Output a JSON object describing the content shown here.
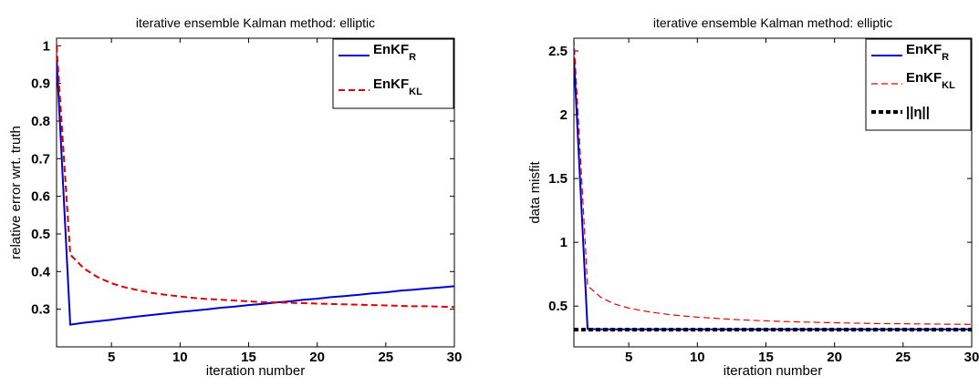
{
  "chart_data": [
    {
      "type": "line",
      "title": "iterative ensemble Kalman method: elliptic",
      "xlabel": "iteration number",
      "ylabel": "relative error wrt. truth",
      "xlim": [
        1,
        30
      ],
      "ylim": [
        0.2,
        1.02
      ],
      "xticks": [
        5,
        10,
        15,
        20,
        25,
        30
      ],
      "yticks": [
        0.3,
        0.4,
        0.5,
        0.6,
        0.7,
        0.8,
        0.9,
        1
      ],
      "legend_position": "top-right",
      "series": [
        {
          "legend_main": "EnKF",
          "legend_sub": "R",
          "color": "#0000cc",
          "dash": "solid",
          "x": [
            1,
            2,
            3,
            4,
            5,
            6,
            7,
            8,
            9,
            10,
            11,
            12,
            13,
            14,
            15,
            16,
            17,
            18,
            19,
            20,
            21,
            22,
            23,
            24,
            25,
            26,
            27,
            28,
            29,
            30
          ],
          "y": [
            0.97,
            0.259,
            0.264,
            0.268,
            0.272,
            0.277,
            0.281,
            0.285,
            0.289,
            0.293,
            0.296,
            0.3,
            0.304,
            0.307,
            0.311,
            0.314,
            0.318,
            0.321,
            0.325,
            0.328,
            0.332,
            0.335,
            0.338,
            0.342,
            0.345,
            0.349,
            0.352,
            0.355,
            0.358,
            0.361
          ]
        },
        {
          "legend_main": "EnKF",
          "legend_sub": "KL",
          "color": "#e00000",
          "dash": "dashed",
          "x": [
            1,
            2,
            3,
            4,
            5,
            6,
            7,
            8,
            9,
            10,
            11,
            12,
            13,
            14,
            15,
            16,
            17,
            18,
            19,
            20,
            21,
            22,
            23,
            24,
            25,
            26,
            27,
            28,
            29,
            30
          ],
          "y": [
            1.0,
            0.445,
            0.408,
            0.385,
            0.369,
            0.358,
            0.35,
            0.343,
            0.338,
            0.334,
            0.33,
            0.327,
            0.325,
            0.323,
            0.321,
            0.319,
            0.318,
            0.317,
            0.316,
            0.315,
            0.314,
            0.313,
            0.312,
            0.311,
            0.31,
            0.309,
            0.308,
            0.308,
            0.307,
            0.306
          ]
        }
      ]
    },
    {
      "type": "line",
      "title": "iterative ensemble Kalman method: elliptic",
      "xlabel": "iteration number",
      "ylabel": "data misfit",
      "xlim": [
        1,
        30
      ],
      "ylim": [
        0.18,
        2.6
      ],
      "xticks": [
        5,
        10,
        15,
        20,
        25,
        30
      ],
      "yticks": [
        0.5,
        1,
        1.5,
        2,
        2.5
      ],
      "legend_position": "top-right",
      "series": [
        {
          "legend_main": "EnKF",
          "legend_sub": "R",
          "color": "#0000cc",
          "dash": "solid",
          "x": [
            1,
            2,
            3,
            4,
            5,
            6,
            7,
            8,
            9,
            10,
            11,
            12,
            13,
            14,
            15,
            16,
            17,
            18,
            19,
            20,
            21,
            22,
            23,
            24,
            25,
            26,
            27,
            28,
            29,
            30
          ],
          "y": [
            2.45,
            0.32,
            0.318,
            0.318,
            0.318,
            0.318,
            0.318,
            0.318,
            0.318,
            0.318,
            0.318,
            0.318,
            0.318,
            0.318,
            0.318,
            0.318,
            0.318,
            0.318,
            0.318,
            0.318,
            0.318,
            0.318,
            0.318,
            0.318,
            0.318,
            0.318,
            0.318,
            0.318,
            0.318,
            0.318
          ]
        },
        {
          "legend_main": "EnKF",
          "legend_sub": "KL",
          "color": "#e00000",
          "dash": "thin-dashed",
          "x": [
            1,
            2,
            3,
            4,
            5,
            6,
            7,
            8,
            9,
            10,
            11,
            12,
            13,
            14,
            15,
            16,
            17,
            18,
            19,
            20,
            21,
            22,
            23,
            24,
            25,
            26,
            27,
            28,
            29,
            30
          ],
          "y": [
            2.6,
            0.66,
            0.565,
            0.515,
            0.484,
            0.463,
            0.446,
            0.433,
            0.422,
            0.413,
            0.406,
            0.399,
            0.393,
            0.388,
            0.384,
            0.38,
            0.377,
            0.374,
            0.371,
            0.369,
            0.367,
            0.365,
            0.363,
            0.362,
            0.361,
            0.36,
            0.359,
            0.358,
            0.357,
            0.356
          ]
        },
        {
          "legend_main": "||η||",
          "legend_sub": "",
          "color": "#000000",
          "dash": "thick-dotted",
          "x": [
            1,
            30
          ],
          "y": [
            0.315,
            0.315
          ]
        }
      ]
    }
  ]
}
